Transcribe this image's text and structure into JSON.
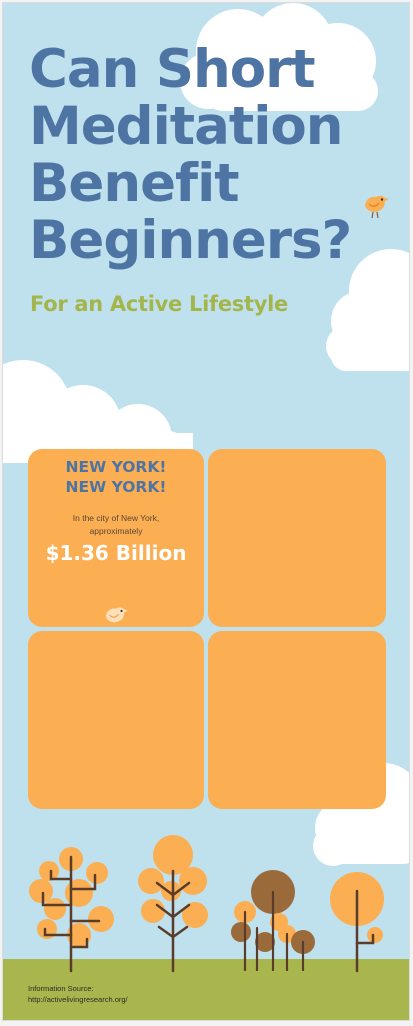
{
  "title_lines": [
    "Can Short",
    "Meditation",
    "Benefit",
    "Beginners?"
  ],
  "subtitle": "For an Active Lifestyle",
  "panel_one": {
    "heading_line1": "NEW YORK!",
    "heading_line2": "NEW YORK!",
    "text_line1": "In the city of New York,",
    "text_line2": "approximately",
    "amount": "$1.36 Billion"
  },
  "source": {
    "label": "Information Source:",
    "url": "http://activelivingresearch.org/"
  },
  "colors": {
    "sky": "#bfe1ed",
    "title": "#4e74a3",
    "subtitle": "#a3b54b",
    "panel": "#fbae52",
    "ground": "#a9b64d",
    "tree_orange": "#fbae52",
    "tree_brown": "#9a6a3a",
    "trunk": "#5a3c2a",
    "cloud": "#ffffff"
  },
  "icons": [
    "cloud-icon",
    "bird-icon",
    "tree-icon"
  ]
}
